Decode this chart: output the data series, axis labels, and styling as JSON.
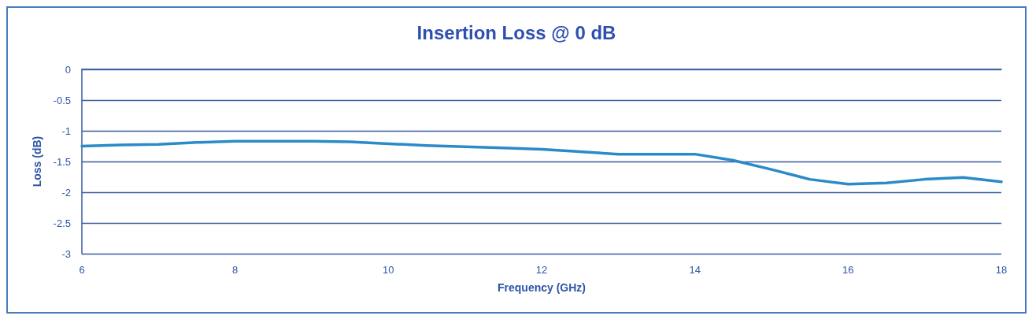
{
  "chart_data": {
    "type": "line",
    "title": "Insertion Loss @ 0 dB",
    "xlabel": "Frequency (GHz)",
    "ylabel": "Loss (dB)",
    "x": [
      6,
      6.5,
      7,
      7.5,
      8,
      8.5,
      9,
      9.5,
      10,
      10.5,
      11,
      11.5,
      12,
      12.5,
      13,
      13.5,
      14,
      14.5,
      15,
      15.5,
      16,
      16.5,
      17,
      17.5,
      18
    ],
    "series": [
      {
        "color": "#2a8bc8",
        "values": [
          -1.25,
          -1.23,
          -1.22,
          -1.19,
          -1.17,
          -1.17,
          -1.17,
          -1.18,
          -1.21,
          -1.24,
          -1.26,
          -1.28,
          -1.3,
          -1.34,
          -1.38,
          -1.38,
          -1.38,
          -1.48,
          -1.63,
          -1.79,
          -1.87,
          -1.85,
          -1.79,
          -1.76,
          -1.83
        ]
      }
    ],
    "xlim": [
      6,
      18
    ],
    "xticks": [
      6,
      8,
      10,
      12,
      14,
      16,
      18
    ],
    "ylim": [
      -3,
      0
    ],
    "yticks": [
      -3,
      -2.5,
      -2,
      -1.5,
      -1,
      -0.5,
      0
    ],
    "grid": "y",
    "marker": "none",
    "line_style": "solid"
  }
}
